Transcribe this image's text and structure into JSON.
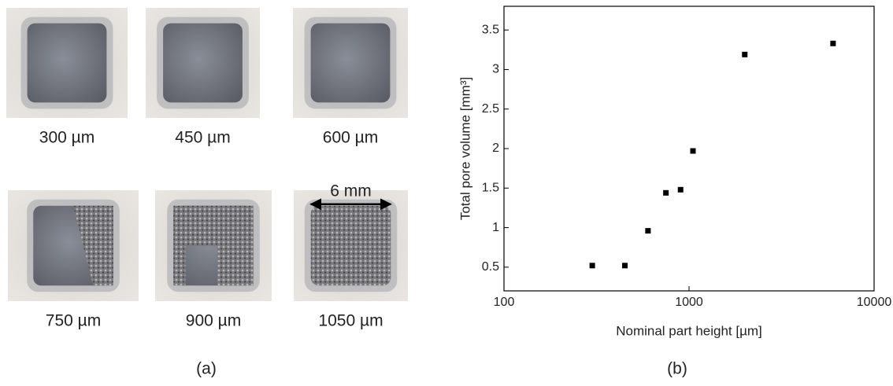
{
  "panel_a": {
    "photos": [
      {
        "label": "300 µm"
      },
      {
        "label": "450 µm"
      },
      {
        "label": "600 µm"
      },
      {
        "label": "750 µm"
      },
      {
        "label": "900 µm"
      },
      {
        "label": "1050 µm"
      }
    ],
    "scale_label": "6 mm",
    "caption": "(a)"
  },
  "chart_data": {
    "type": "scatter",
    "x_label": "Nominal part height [µm]",
    "y_label": "Total pore volume [mm³]",
    "caption": "(b)",
    "x": [
      300,
      450,
      600,
      750,
      900,
      1050,
      2000,
      6000
    ],
    "series": [
      {
        "color": "#000000",
        "values": [
          0.52,
          0.52,
          0.96,
          1.44,
          1.48,
          1.97,
          3.19,
          3.33
        ]
      }
    ],
    "x_log": true,
    "xlim": [
      100,
      10000
    ],
    "xticks": [
      100,
      1000,
      10000
    ],
    "ylim": [
      0.2,
      3.8
    ],
    "yticks": [
      0.5,
      1,
      1.5,
      2,
      2.5,
      3,
      3.5
    ]
  }
}
